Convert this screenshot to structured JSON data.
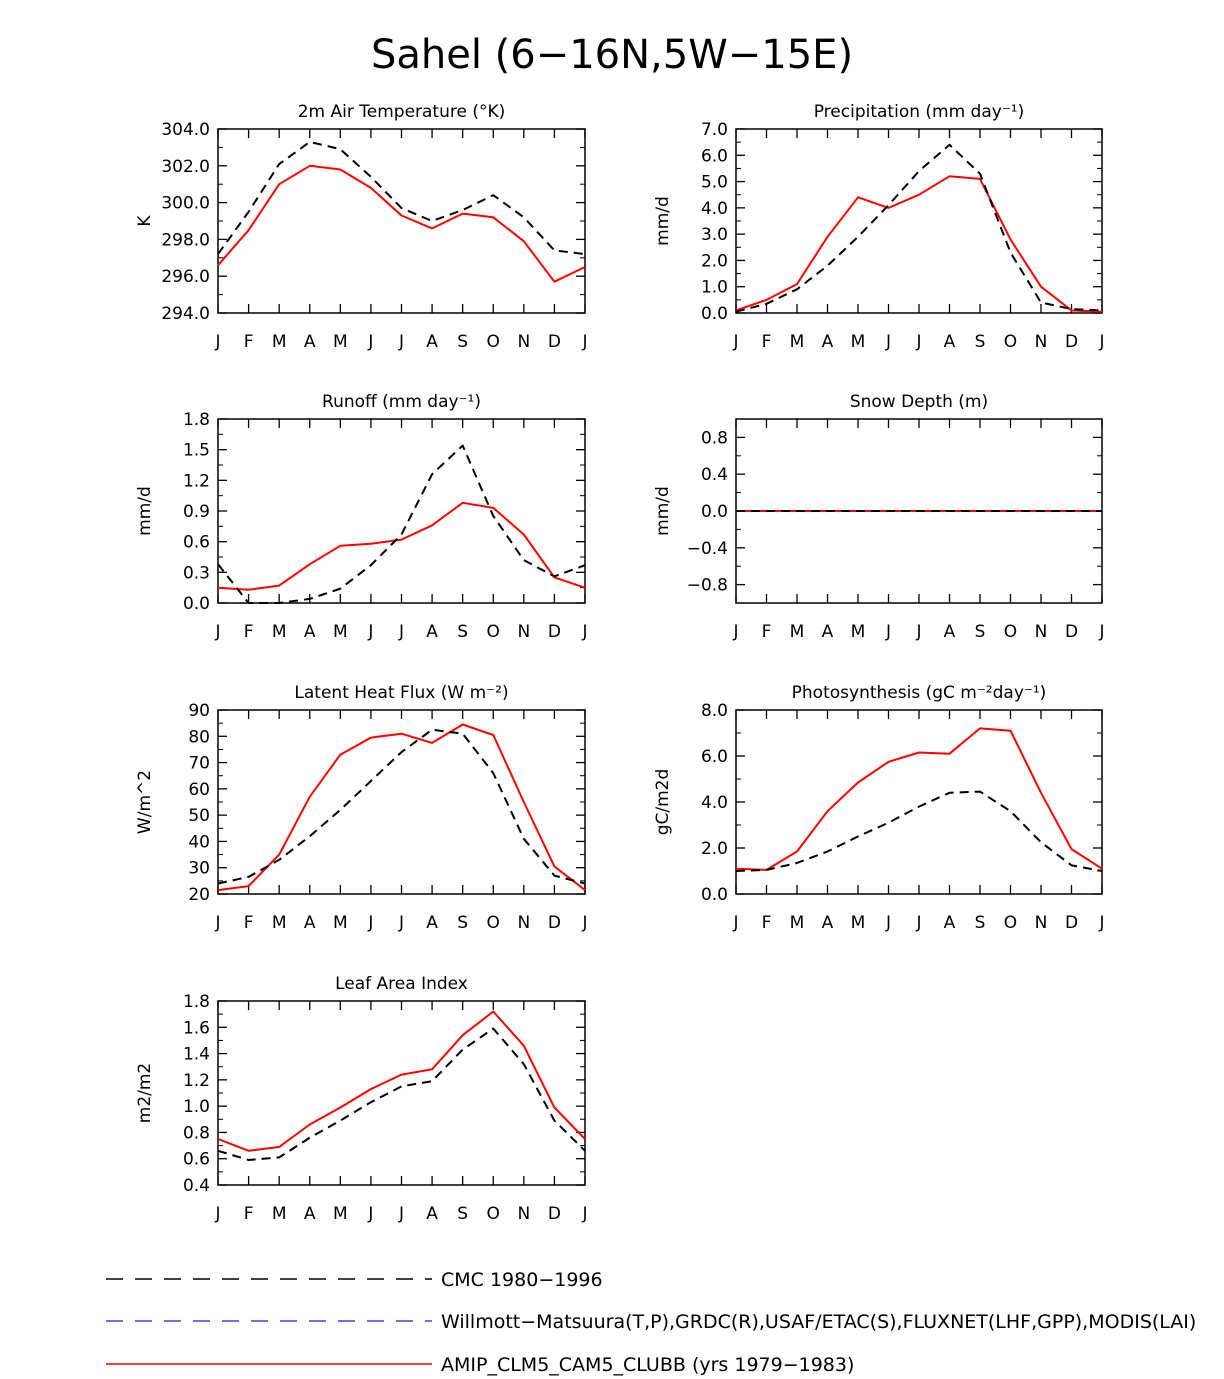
{
  "figure_title": "Sahel (6−16N,5W−15E)",
  "months": [
    "J",
    "F",
    "M",
    "A",
    "M",
    "J",
    "J",
    "A",
    "S",
    "O",
    "N",
    "D",
    "J"
  ],
  "colors": {
    "ref": "#000000",
    "obs": "#3b3bff",
    "model": "#ff0000"
  },
  "legend": [
    {
      "style": "dash-black",
      "label": "CMC 1980−1996"
    },
    {
      "style": "dash-blue",
      "label": "Willmott−Matsuura(T,P),GRDC(R),USAF/ETAC(S),FLUXNET(LHF,GPP),MODIS(LAI)"
    },
    {
      "style": "solid-red",
      "label": "AMIP_CLM5_CAM5_CLUBB (yrs 1979−1983)"
    }
  ],
  "chart_data": [
    {
      "type": "line",
      "title": "2m Air Temperature (°K)",
      "ylabel": "K",
      "ylim": [
        294,
        304
      ],
      "yticks": [
        294,
        296,
        298,
        300,
        302,
        304
      ],
      "ytick_labels": [
        "294.0",
        "296.0",
        "298.0",
        "300.0",
        "302.0",
        "304.0"
      ],
      "series": [
        {
          "name": "CMC 1980−1996",
          "style": "dash",
          "values": [
            297.2,
            299.5,
            302.1,
            303.3,
            302.9,
            301.4,
            299.7,
            299.0,
            299.6,
            300.4,
            299.2,
            297.4,
            297.2
          ]
        },
        {
          "name": "AMIP_CLM5_CAM5_CLUBB (yrs 1979−1983)",
          "style": "solid",
          "values": [
            296.6,
            298.5,
            301.0,
            302.0,
            301.8,
            300.8,
            299.3,
            298.6,
            299.4,
            299.2,
            297.9,
            295.7,
            296.5
          ]
        }
      ]
    },
    {
      "type": "line",
      "title": "Precipitation (mm day⁻¹)",
      "ylabel": "mm/d",
      "ylim": [
        0,
        7
      ],
      "yticks": [
        0,
        1,
        2,
        3,
        4,
        5,
        6,
        7
      ],
      "ytick_labels": [
        "0.0",
        "1.0",
        "2.0",
        "3.0",
        "4.0",
        "5.0",
        "6.0",
        "7.0"
      ],
      "series": [
        {
          "name": "CMC 1980−1996",
          "style": "dash",
          "values": [
            0.05,
            0.35,
            0.9,
            1.8,
            2.9,
            4.1,
            5.4,
            6.4,
            5.3,
            2.3,
            0.4,
            0.15,
            0.1
          ]
        },
        {
          "name": "AMIP_CLM5_CAM5_CLUBB (yrs 1979−1983)",
          "style": "solid",
          "values": [
            0.1,
            0.5,
            1.1,
            2.9,
            4.4,
            4.0,
            4.5,
            5.2,
            5.1,
            2.8,
            1.0,
            0.1,
            0.05
          ]
        }
      ]
    },
    {
      "type": "line",
      "title": "Runoff (mm day⁻¹)",
      "ylabel": "mm/d",
      "ylim": [
        0,
        1.8
      ],
      "yticks": [
        0,
        0.3,
        0.6,
        0.9,
        1.2,
        1.5,
        1.8
      ],
      "ytick_labels": [
        "0.0",
        "0.3",
        "0.6",
        "0.9",
        "1.2",
        "1.5",
        "1.8"
      ],
      "series": [
        {
          "name": "CMC 1980−1996",
          "style": "dash",
          "values": [
            0.38,
            0.0,
            0.0,
            0.04,
            0.14,
            0.37,
            0.67,
            1.26,
            1.54,
            0.85,
            0.42,
            0.26,
            0.37
          ]
        },
        {
          "name": "AMIP_CLM5_CAM5_CLUBB (yrs 1979−1983)",
          "style": "solid",
          "values": [
            0.15,
            0.13,
            0.17,
            0.38,
            0.56,
            0.58,
            0.62,
            0.76,
            0.98,
            0.93,
            0.67,
            0.25,
            0.15
          ]
        }
      ]
    },
    {
      "type": "line",
      "title": "Snow Depth (m)",
      "ylabel": "mm/d",
      "ylim": [
        -1,
        1
      ],
      "yticks": [
        -0.8,
        -0.4,
        0,
        0.4,
        0.8
      ],
      "ytick_labels": [
        "−0.8",
        "−0.4",
        "0.0",
        "0.4",
        "0.8"
      ],
      "series": [
        {
          "name": "CMC 1980−1996",
          "style": "dash",
          "values": [
            0,
            0,
            0,
            0,
            0,
            0,
            0,
            0,
            0,
            0,
            0,
            0,
            0
          ]
        },
        {
          "name": "AMIP_CLM5_CAM5_CLUBB (yrs 1979−1983)",
          "style": "solid",
          "values": [
            0,
            0,
            0,
            0,
            0,
            0,
            0,
            0,
            0,
            0,
            0,
            0,
            0
          ]
        }
      ]
    },
    {
      "type": "line",
      "title": "Latent Heat Flux (W m⁻²)",
      "ylabel": "W/m^2",
      "ylim": [
        20,
        90
      ],
      "yticks": [
        20,
        30,
        40,
        50,
        60,
        70,
        80,
        90
      ],
      "ytick_labels": [
        "20",
        "30",
        "40",
        "50",
        "60",
        "70",
        "80",
        "90"
      ],
      "series": [
        {
          "name": "CMC 1980−1996",
          "style": "dash",
          "values": [
            24,
            26.5,
            33,
            42,
            52,
            63,
            74,
            82.5,
            81,
            66,
            41,
            27,
            24
          ]
        },
        {
          "name": "AMIP_CLM5_CAM5_CLUBB (yrs 1979−1983)",
          "style": "solid",
          "values": [
            21.5,
            23,
            35,
            57,
            73,
            79.5,
            81,
            77.5,
            84.5,
            80.5,
            55,
            30.5,
            21.5
          ]
        }
      ]
    },
    {
      "type": "line",
      "title": "Photosynthesis (gC m⁻²day⁻¹)",
      "ylabel": "gC/m2d",
      "ylim": [
        0,
        8
      ],
      "yticks": [
        0,
        2,
        4,
        6,
        8
      ],
      "ytick_labels": [
        "0.0",
        "2.0",
        "4.0",
        "6.0",
        "8.0"
      ],
      "series": [
        {
          "name": "CMC 1980−1996",
          "style": "dash",
          "values": [
            1.0,
            1.05,
            1.35,
            1.85,
            2.5,
            3.1,
            3.8,
            4.4,
            4.45,
            3.6,
            2.25,
            1.25,
            1.0
          ]
        },
        {
          "name": "AMIP_CLM5_CAM5_CLUBB (yrs 1979−1983)",
          "style": "solid",
          "values": [
            1.1,
            1.05,
            1.85,
            3.6,
            4.85,
            5.75,
            6.15,
            6.1,
            7.2,
            7.1,
            4.4,
            1.95,
            1.1
          ]
        }
      ]
    },
    {
      "type": "line",
      "title": "Leaf Area Index",
      "ylabel": "m2/m2",
      "ylim": [
        0.4,
        1.8
      ],
      "yticks": [
        0.4,
        0.6,
        0.8,
        1.0,
        1.2,
        1.4,
        1.6,
        1.8
      ],
      "ytick_labels": [
        "0.4",
        "0.6",
        "0.8",
        "1.0",
        "1.2",
        "1.4",
        "1.6",
        "1.8"
      ],
      "series": [
        {
          "name": "CMC 1980−1996",
          "style": "dash",
          "values": [
            0.66,
            0.59,
            0.61,
            0.76,
            0.89,
            1.03,
            1.15,
            1.19,
            1.43,
            1.59,
            1.32,
            0.89,
            0.66
          ]
        },
        {
          "name": "AMIP_CLM5_CAM5_CLUBB (yrs 1979−1983)",
          "style": "solid",
          "values": [
            0.75,
            0.66,
            0.69,
            0.86,
            0.99,
            1.13,
            1.24,
            1.28,
            1.54,
            1.72,
            1.46,
            0.99,
            0.75
          ]
        }
      ]
    }
  ]
}
